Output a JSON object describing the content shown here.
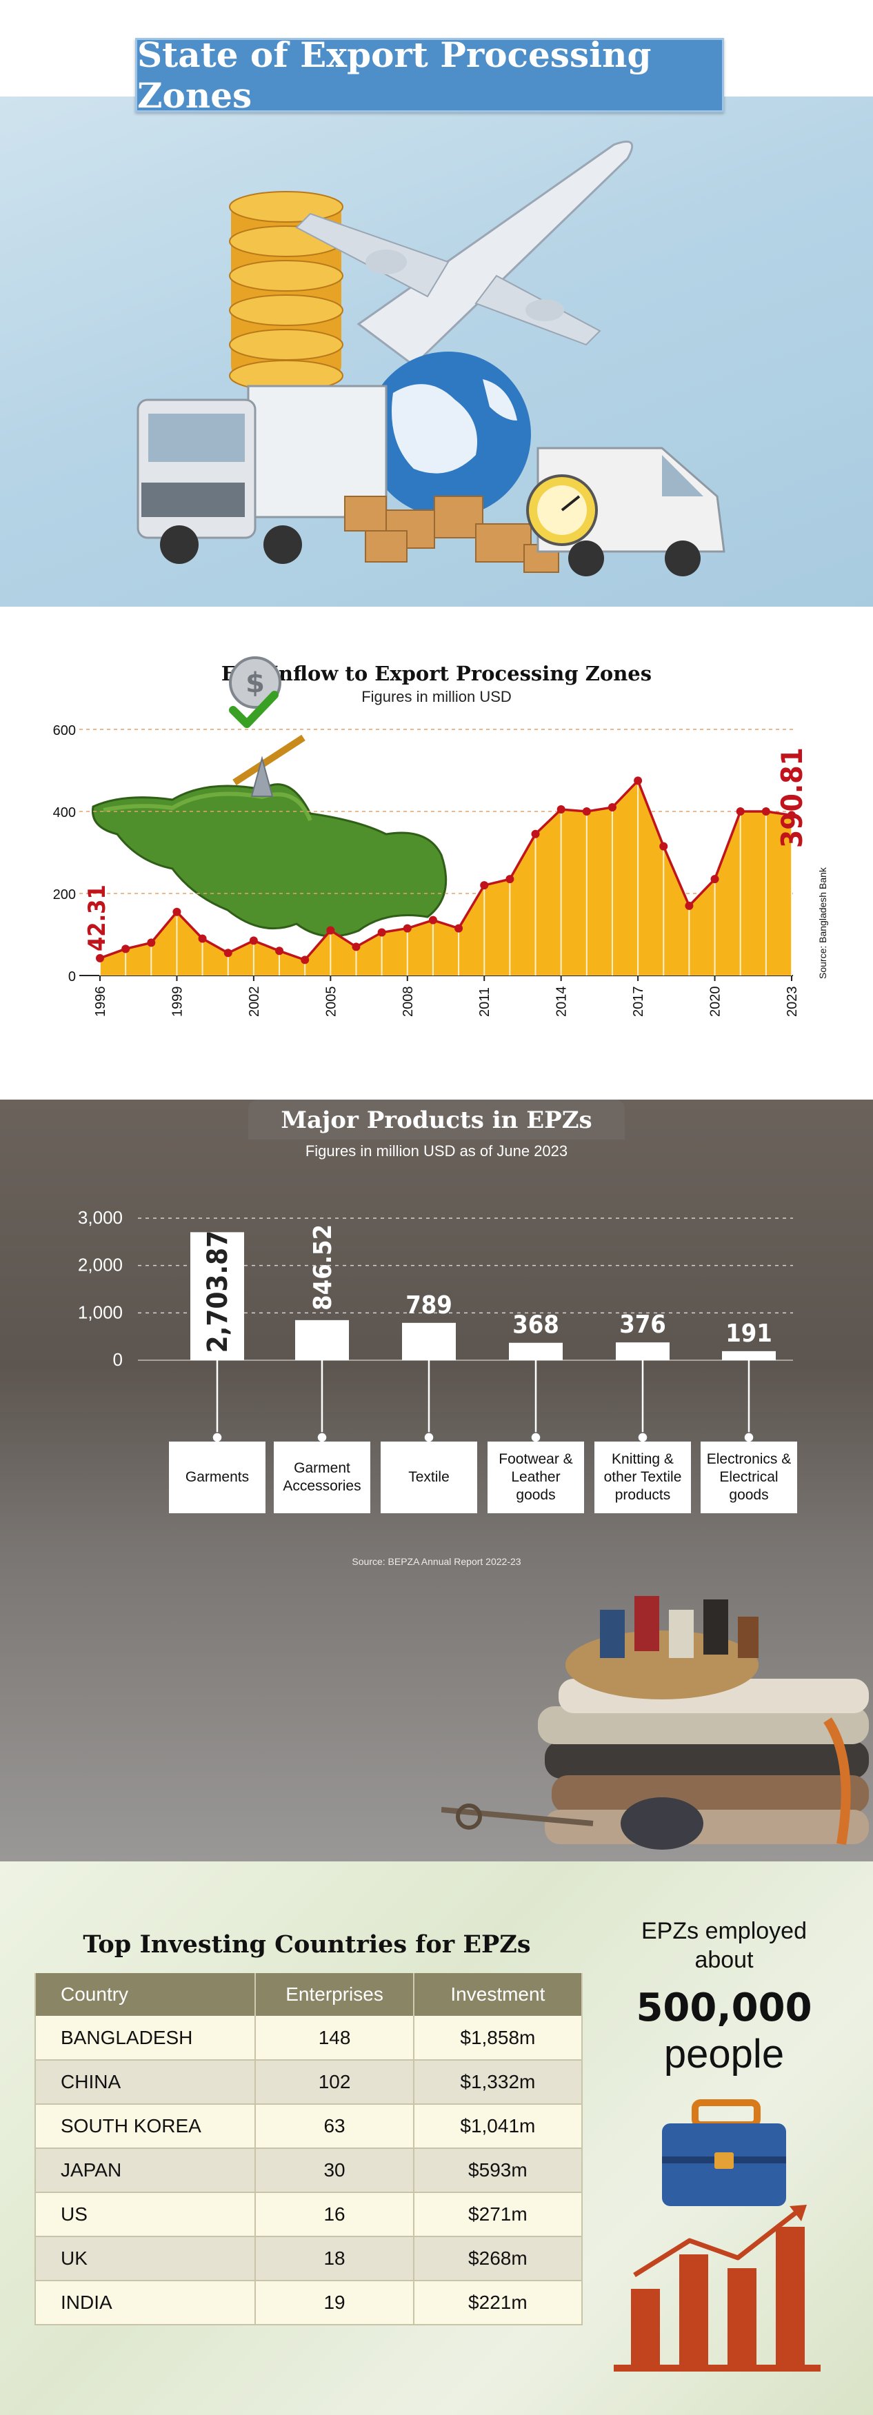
{
  "header": {
    "title": "State of Export Processing Zones"
  },
  "fdi": {
    "title": "FDI Inflow to Export Processing Zones",
    "subtitle": "Figures in million USD",
    "source": "Source: Bangladesh Bank",
    "first_label": "42.31",
    "last_label": "390.81"
  },
  "products": {
    "title": "Major Products in EPZs",
    "subtitle": "Figures in million USD as of June 2023",
    "source": "Source: BEPZA Annual Report 2022-23",
    "items": [
      {
        "label": "Garments",
        "value_label": "2,703.87"
      },
      {
        "label": "Garment Accessories",
        "value_label": "846.52"
      },
      {
        "label": "Textile",
        "value_label": "789"
      },
      {
        "label": "Footwear & Leather goods",
        "value_label": "368"
      },
      {
        "label": "Knitting & other Textile products",
        "value_label": "376"
      },
      {
        "label": "Electronics & Electrical goods",
        "value_label": "191"
      }
    ]
  },
  "investors": {
    "title": "Top Investing Countries for EPZs",
    "headers": [
      "Country",
      "Enterprises",
      "Investment"
    ],
    "rows": [
      [
        "BANGLADESH",
        "148",
        "$1,858m"
      ],
      [
        "CHINA",
        "102",
        "$1,332m"
      ],
      [
        "SOUTH KOREA",
        "63",
        "$1,041m"
      ],
      [
        "JAPAN",
        "30",
        "$593m"
      ],
      [
        "US",
        "16",
        "$271m"
      ],
      [
        "UK",
        "18",
        "$268m"
      ],
      [
        "INDIA",
        "19",
        "$221m"
      ]
    ]
  },
  "employment": {
    "line1": "EPZs employed",
    "line2": "about",
    "number": "500,000",
    "unit": "people"
  },
  "colors": {
    "title_blue": "#4e8fc9",
    "area_yellow": "#f6b41a",
    "line_red": "#c0131b",
    "table_header": "#8a8565"
  },
  "chart_data": [
    {
      "type": "area",
      "title": "FDI Inflow to Export Processing Zones",
      "subtitle": "Figures in million USD",
      "x": [
        1996,
        1997,
        1998,
        1999,
        2000,
        2001,
        2002,
        2003,
        2004,
        2005,
        2006,
        2007,
        2008,
        2009,
        2010,
        2011,
        2012,
        2013,
        2014,
        2015,
        2016,
        2017,
        2018,
        2019,
        2020,
        2021,
        2022,
        2023
      ],
      "x_tick_labels": [
        "1996",
        "1999",
        "2002",
        "2005",
        "2008",
        "2011",
        "2014",
        "2017",
        "2020",
        "2023"
      ],
      "values": [
        42.31,
        65,
        80,
        155,
        90,
        55,
        85,
        60,
        38,
        110,
        70,
        105,
        115,
        135,
        115,
        220,
        235,
        345,
        405,
        400,
        410,
        475,
        315,
        170,
        235,
        400,
        400,
        390.81
      ],
      "ylim": [
        0,
        600
      ],
      "y_ticks": [
        0,
        200,
        400,
        600
      ],
      "grid": true,
      "annotations": [
        "42.31",
        "390.81"
      ],
      "source": "Source: Bangladesh Bank"
    },
    {
      "type": "bar",
      "title": "Major Products in EPZs",
      "subtitle": "Figures in million USD as of June 2023",
      "categories": [
        "Garments",
        "Garment Accessories",
        "Textile",
        "Footwear & Leather goods",
        "Knitting & other Textile products",
        "Electronics & Electrical goods"
      ],
      "values": [
        2703.87,
        846.52,
        789,
        368,
        376,
        191
      ],
      "ylim": [
        0,
        3000
      ],
      "y_ticks": [
        "0",
        "1,000",
        "2,000",
        "3,000"
      ],
      "grid": true,
      "source": "Source: BEPZA Annual Report 2022-23"
    }
  ]
}
